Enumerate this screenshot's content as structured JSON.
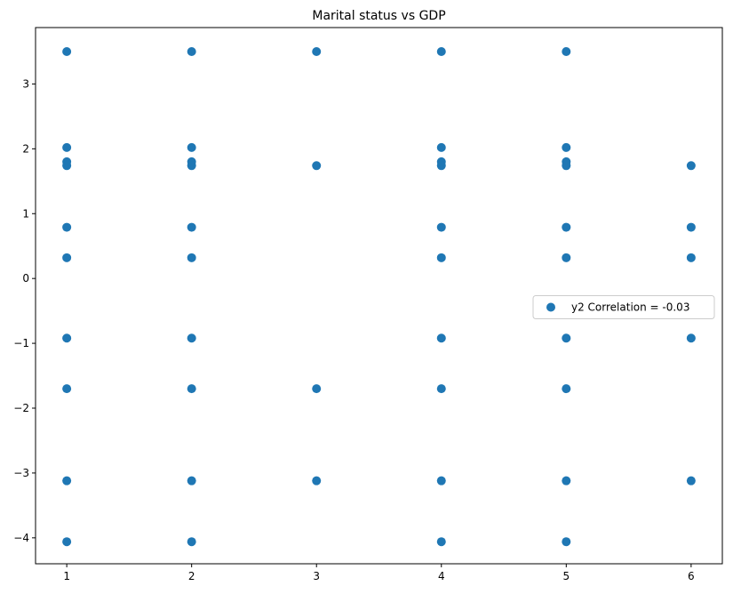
{
  "chart_data": {
    "type": "scatter",
    "title": "Marital status vs GDP",
    "xlabel": "",
    "ylabel": "",
    "xlim": [
      0.75,
      6.25
    ],
    "ylim": [
      -4.4,
      3.87
    ],
    "x_ticks": [
      1,
      2,
      3,
      4,
      5,
      6
    ],
    "y_ticks": [
      3,
      2,
      1,
      0,
      -1,
      -2,
      -3,
      -4
    ],
    "y_tick_labels": [
      "3",
      "2",
      "1",
      "0",
      "−1",
      "−2",
      "−3",
      "−4"
    ],
    "grid": false,
    "legend_position": "center-right",
    "series": [
      {
        "name": "y2 Correlation = -0.03",
        "color": "#1f77b4",
        "points": [
          [
            1,
            3.5
          ],
          [
            1,
            2.02
          ],
          [
            1,
            1.8
          ],
          [
            1,
            1.74
          ],
          [
            1,
            0.79
          ],
          [
            1,
            0.32
          ],
          [
            1,
            -0.92
          ],
          [
            1,
            -1.7
          ],
          [
            1,
            -3.12
          ],
          [
            1,
            -4.06
          ],
          [
            2,
            3.5
          ],
          [
            2,
            2.02
          ],
          [
            2,
            1.8
          ],
          [
            2,
            1.74
          ],
          [
            2,
            0.79
          ],
          [
            2,
            0.32
          ],
          [
            2,
            -0.92
          ],
          [
            2,
            -1.7
          ],
          [
            2,
            -3.12
          ],
          [
            2,
            -4.06
          ],
          [
            3,
            3.5
          ],
          [
            3,
            1.74
          ],
          [
            3,
            -1.7
          ],
          [
            3,
            -3.12
          ],
          [
            4,
            3.5
          ],
          [
            4,
            2.02
          ],
          [
            4,
            1.8
          ],
          [
            4,
            1.74
          ],
          [
            4,
            0.79
          ],
          [
            4,
            0.32
          ],
          [
            4,
            -0.92
          ],
          [
            4,
            -1.7
          ],
          [
            4,
            -3.12
          ],
          [
            4,
            -4.06
          ],
          [
            5,
            3.5
          ],
          [
            5,
            2.02
          ],
          [
            5,
            1.8
          ],
          [
            5,
            1.74
          ],
          [
            5,
            0.79
          ],
          [
            5,
            0.32
          ],
          [
            5,
            -0.92
          ],
          [
            5,
            -1.7
          ],
          [
            5,
            -3.12
          ],
          [
            5,
            -4.06
          ],
          [
            6,
            1.74
          ],
          [
            6,
            0.79
          ],
          [
            6,
            0.32
          ],
          [
            6,
            -0.92
          ],
          [
            6,
            -3.12
          ]
        ]
      }
    ]
  }
}
